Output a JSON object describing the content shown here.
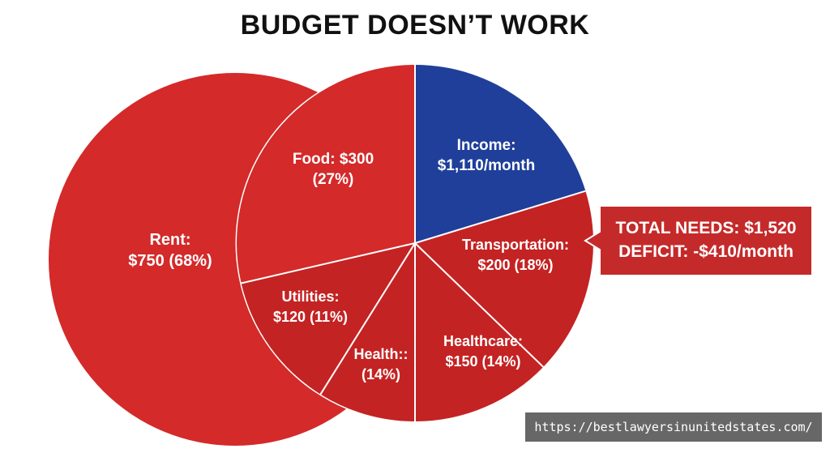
{
  "title": "BUDGET DOESN’T WORK",
  "colors": {
    "expense_red": "#d42a2a",
    "expense_red_dark": "#c42323",
    "income_blue": "#1f3f9a",
    "callout_red": "#c52a2a",
    "divider": "#ffffff"
  },
  "chart_data": [
    {
      "type": "pie",
      "name": "rent-circle",
      "slices": [
        {
          "label_lines": [
            "Rent:",
            "$750 (68%)"
          ],
          "value": 750,
          "percent": 68
        }
      ]
    },
    {
      "type": "pie",
      "name": "budget-pie",
      "slices": [
        {
          "label_lines": [
            "Income:",
            "$1,110/month"
          ],
          "value": 1110,
          "category": "income"
        },
        {
          "label_lines": [
            "Transportation:",
            "$200 (18%)"
          ],
          "value": 200,
          "percent": 18,
          "category": "expense"
        },
        {
          "label_lines": [
            "Healthcare:",
            "$150 (14%)"
          ],
          "value": 150,
          "percent": 14,
          "category": "expense"
        },
        {
          "label_lines": [
            "Health::",
            "(14%)"
          ],
          "percent": 14,
          "category": "expense"
        },
        {
          "label_lines": [
            "Utilities:",
            "$120 (11%)"
          ],
          "value": 120,
          "percent": 11,
          "category": "expense"
        },
        {
          "label_lines": [
            "Food: $300",
            "(27%)"
          ],
          "value": 300,
          "percent": 27,
          "category": "expense"
        }
      ]
    }
  ],
  "callout": {
    "line1": "TOTAL NEEDS: $1,520",
    "line2": "DEFICIT: -$410/month"
  },
  "watermark": "https://bestlawyersinunitedstates.com/"
}
